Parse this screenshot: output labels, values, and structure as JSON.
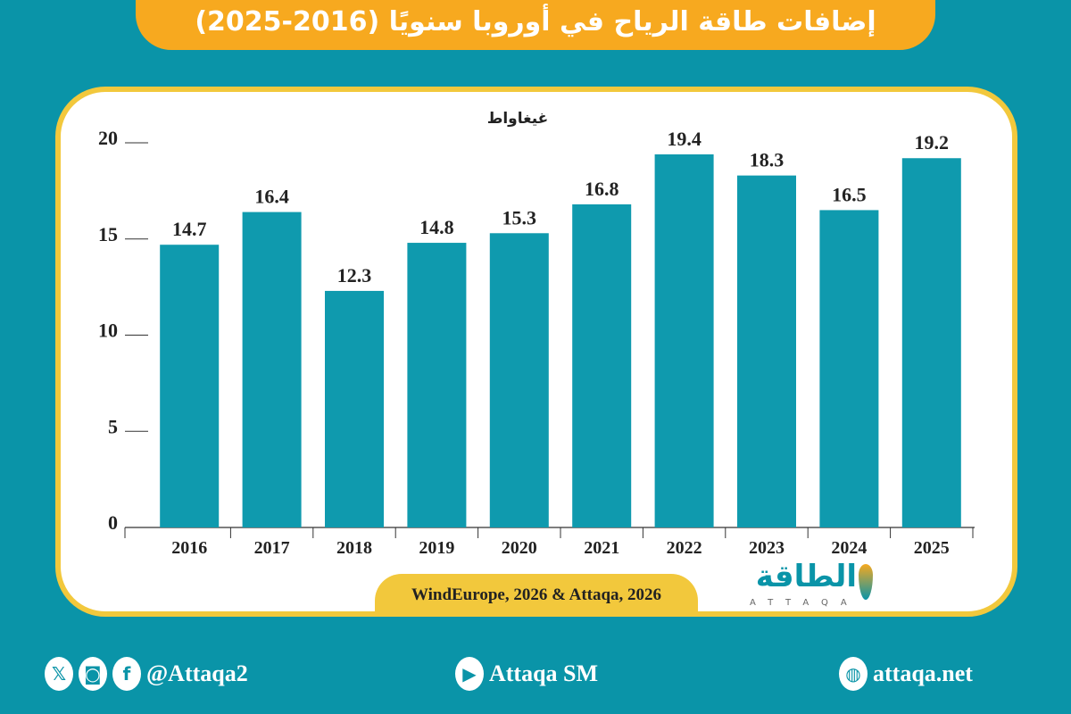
{
  "title": "إضافات طاقة الرياح في أوروبا سنويًا (2016-2025)",
  "source": "WindEurope, 2026 & Attaqa, 2026",
  "logo": {
    "arabic": "الطاقة",
    "latin": "ATTAQA"
  },
  "footer": {
    "social_handle": "@Attaqa2",
    "youtube": "Attaqa SM",
    "website": "attaqa.net",
    "icons": [
      "x-icon",
      "instagram-icon",
      "facebook-icon",
      "youtube-icon",
      "globe-icon"
    ]
  },
  "colors": {
    "background": "#0a94a8",
    "bar": "#0f9aae",
    "title_bg": "#f7a91f",
    "border": "#f2c83c"
  },
  "chart_data": {
    "type": "bar",
    "ylabel": "غيغاواط",
    "categories": [
      "2016",
      "2017",
      "2018",
      "2019",
      "2020",
      "2021",
      "2022",
      "2023",
      "2024",
      "2025"
    ],
    "values": [
      14.7,
      16.4,
      12.3,
      14.8,
      15.3,
      16.8,
      19.4,
      18.3,
      16.5,
      19.2
    ],
    "data_labels": [
      "14.7",
      "16.4",
      "12.3",
      "14.8",
      "15.3",
      "16.8",
      "19.4",
      "18.3",
      "16.5",
      "19.2"
    ],
    "ylim": [
      0,
      20
    ],
    "yticks": [
      "0",
      "5",
      "10",
      "15",
      "20"
    ],
    "grid": false,
    "legend": "none"
  }
}
